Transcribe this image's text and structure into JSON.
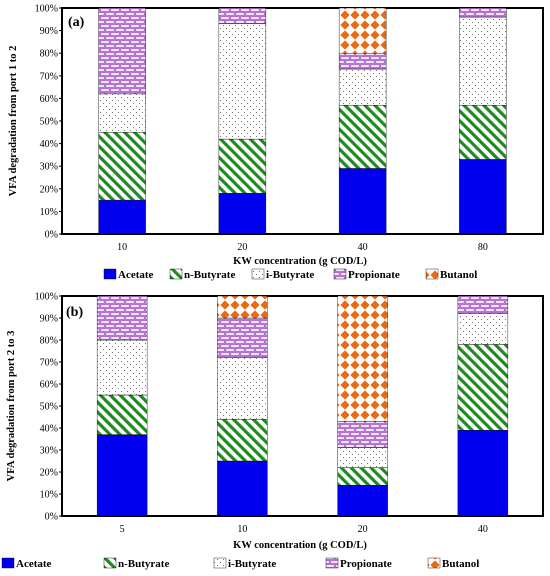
{
  "chart_data": [
    {
      "type": "bar",
      "stacked": true,
      "panel_label": "(a)",
      "xlabel": "KW concentration (g COD/L)",
      "ylabel": "VFA degradation from port 1 to 2",
      "ylim": [
        0,
        100
      ],
      "y_ticks": [
        "0%",
        "10%",
        "20%",
        "30%",
        "40%",
        "50%",
        "60%",
        "70%",
        "80%",
        "90%",
        "100%"
      ],
      "categories": [
        "10",
        "20",
        "40",
        "80"
      ],
      "series": [
        {
          "name": "Acetate",
          "values": [
            15,
            18,
            29,
            33
          ]
        },
        {
          "name": "n-Butyrate",
          "values": [
            30,
            24,
            28,
            24
          ]
        },
        {
          "name": "i-Butyrate",
          "values": [
            17,
            51,
            16,
            39
          ]
        },
        {
          "name": "Propionate",
          "values": [
            38,
            7,
            7,
            4
          ]
        },
        {
          "name": "Butanol",
          "values": [
            0,
            0,
            20,
            0
          ]
        }
      ],
      "legend": [
        "Acetate",
        "n-Butyrate",
        "i-Butyrate",
        "Propionate",
        "Butanol"
      ]
    },
    {
      "type": "bar",
      "stacked": true,
      "panel_label": "(b)",
      "xlabel": "KW concentration  (g COD/L)",
      "ylabel": "VFA degradation from port 2 to 3",
      "ylim": [
        0,
        100
      ],
      "y_ticks": [
        "0%",
        "10%",
        "20%",
        "30%",
        "40%",
        "50%",
        "60%",
        "70%",
        "80%",
        "90%",
        "100%"
      ],
      "categories": [
        "5",
        "10",
        "20",
        "40"
      ],
      "series": [
        {
          "name": "Acetate",
          "values": [
            37,
            25,
            14,
            39
          ]
        },
        {
          "name": "n-Butyrate",
          "values": [
            18,
            19,
            8,
            39
          ]
        },
        {
          "name": "i-Butyrate",
          "values": [
            25,
            28,
            9,
            14
          ]
        },
        {
          "name": "Propionate",
          "values": [
            20,
            18,
            12,
            8
          ]
        },
        {
          "name": "Butanol",
          "values": [
            0,
            10,
            57,
            0
          ]
        }
      ],
      "legend": [
        "Acetate",
        "n-Butyrate",
        "i-Butyrate",
        "Propionate",
        "Butanol"
      ]
    }
  ],
  "colors": {
    "Acetate": "#0000ee",
    "n-Butyrate": "#1f8a1f",
    "i-Butyrate": "#555555",
    "Propionate": "#b06ad0",
    "Butanol": "#ea6a14"
  }
}
